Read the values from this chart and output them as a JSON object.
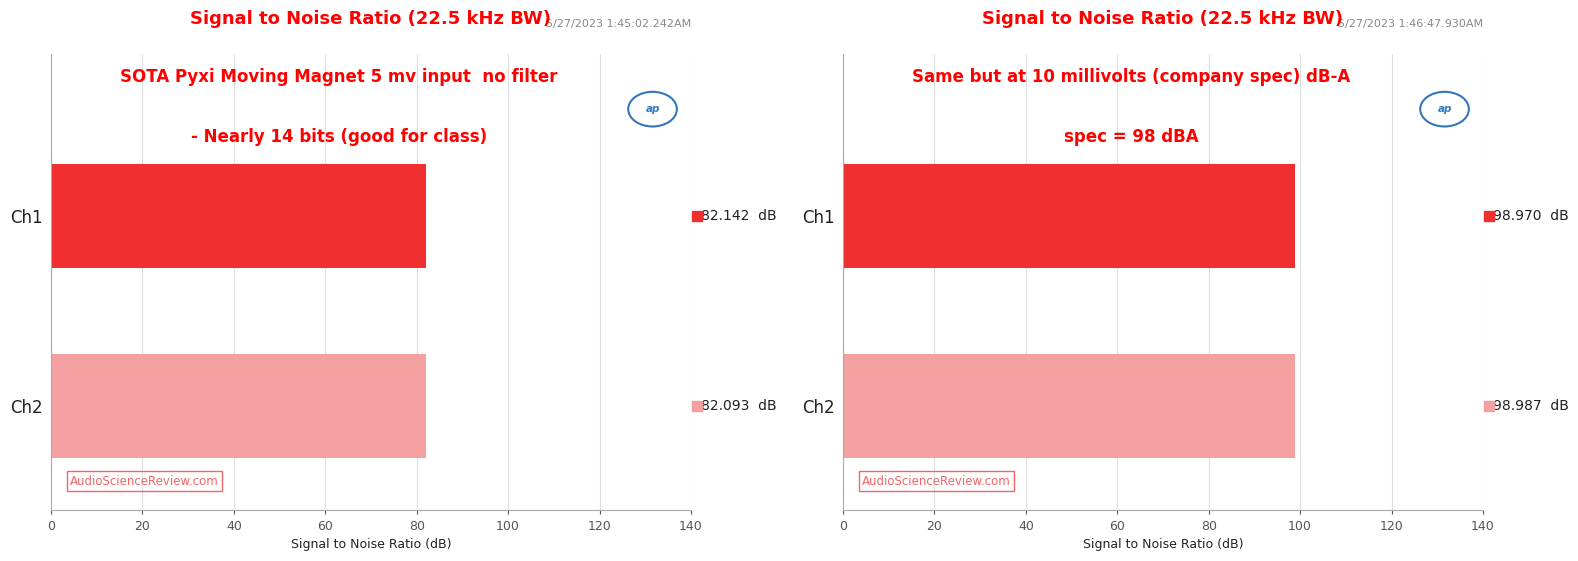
{
  "chart1": {
    "title": "Signal to Noise Ratio (22.5 kHz BW)",
    "timestamp": "5/27/2023 1:45:02.242AM",
    "annotation_line1": "SOTA Pyxi Moving Magnet 5 mv input  no filter",
    "annotation_line2": "- Nearly 14 bits (good for class)",
    "channels": [
      "Ch1",
      "Ch2"
    ],
    "values": [
      82.142,
      82.093
    ],
    "bar_colors": [
      "#f03030",
      "#f4a0a0"
    ],
    "value_labels": [
      "82.142  dB",
      "82.093  dB"
    ],
    "xlabel": "Signal to Noise Ratio (dB)",
    "xlim": [
      0,
      140
    ],
    "xticks": [
      0,
      20,
      40,
      60,
      80,
      100,
      120,
      140
    ]
  },
  "chart2": {
    "title": "Signal to Noise Ratio (22.5 kHz BW)",
    "timestamp": "5/27/2023 1:46:47.930AM",
    "annotation_line1": "Same but at 10 millivolts (company spec) dB-A",
    "annotation_line2": "spec = 98 dBA",
    "channels": [
      "Ch1",
      "Ch2"
    ],
    "values": [
      98.97,
      98.987
    ],
    "bar_colors": [
      "#f03030",
      "#f4a0a0"
    ],
    "value_labels": [
      "98.970  dB",
      "98.987  dB"
    ],
    "xlabel": "Signal to Noise Ratio (dB)",
    "xlim": [
      0,
      140
    ],
    "xticks": [
      0,
      20,
      40,
      60,
      80,
      100,
      120,
      140
    ]
  },
  "title_color": "#ff0000",
  "timestamp_color": "#888888",
  "annotation_color": "#ff0000",
  "label_color": "#222222",
  "watermark_text": "AudioScienceReview.com",
  "watermark_color": "#ee6666",
  "ap_logo_color": "#3377bb",
  "bg_color": "#ffffff",
  "plot_bg_color": "#ffffff",
  "grid_color": "#dddddd"
}
